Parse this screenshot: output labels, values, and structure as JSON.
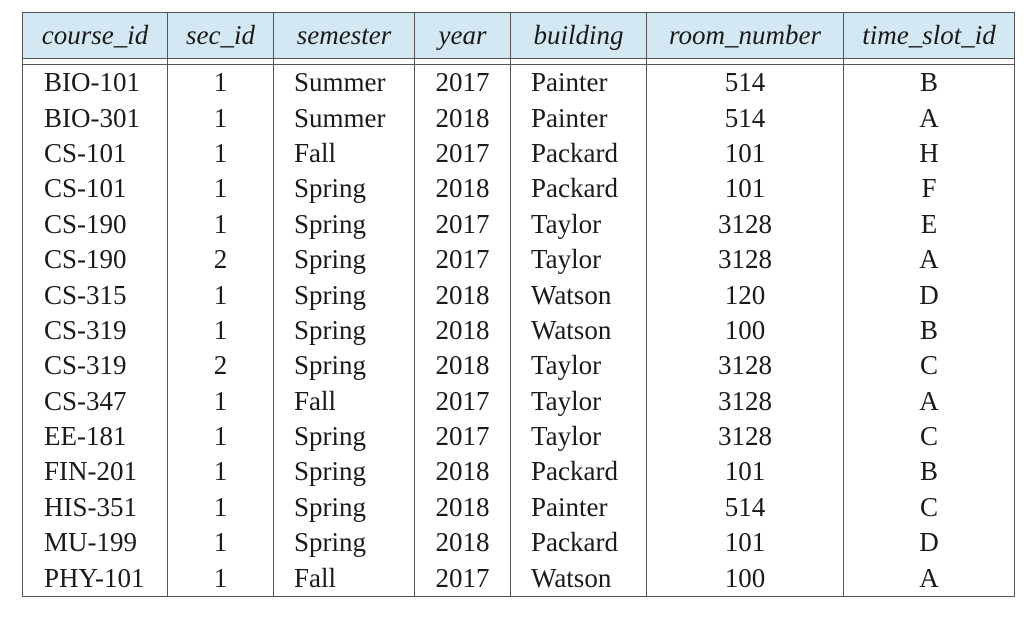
{
  "table": {
    "headers": [
      "course_id",
      "sec_id",
      "semester",
      "year",
      "building",
      "room_number",
      "time_slot_id"
    ],
    "rows": [
      [
        "BIO-101",
        "1",
        "Summer",
        "2017",
        "Painter",
        "514",
        "B"
      ],
      [
        "BIO-301",
        "1",
        "Summer",
        "2018",
        "Painter",
        "514",
        "A"
      ],
      [
        "CS-101",
        "1",
        "Fall",
        "2017",
        "Packard",
        "101",
        "H"
      ],
      [
        "CS-101",
        "1",
        "Spring",
        "2018",
        "Packard",
        "101",
        "F"
      ],
      [
        "CS-190",
        "1",
        "Spring",
        "2017",
        "Taylor",
        "3128",
        "E"
      ],
      [
        "CS-190",
        "2",
        "Spring",
        "2017",
        "Taylor",
        "3128",
        "A"
      ],
      [
        "CS-315",
        "1",
        "Spring",
        "2018",
        "Watson",
        "120",
        "D"
      ],
      [
        "CS-319",
        "1",
        "Spring",
        "2018",
        "Watson",
        "100",
        "B"
      ],
      [
        "CS-319",
        "2",
        "Spring",
        "2018",
        "Taylor",
        "3128",
        "C"
      ],
      [
        "CS-347",
        "1",
        "Fall",
        "2017",
        "Taylor",
        "3128",
        "A"
      ],
      [
        "EE-181",
        "1",
        "Spring",
        "2017",
        "Taylor",
        "3128",
        "C"
      ],
      [
        "FIN-201",
        "1",
        "Spring",
        "2018",
        "Packard",
        "101",
        "B"
      ],
      [
        "HIS-351",
        "1",
        "Spring",
        "2018",
        "Painter",
        "514",
        "C"
      ],
      [
        "MU-199",
        "1",
        "Spring",
        "2018",
        "Packard",
        "101",
        "D"
      ],
      [
        "PHY-101",
        "1",
        "Fall",
        "2017",
        "Watson",
        "100",
        "A"
      ]
    ]
  },
  "colors": {
    "header_background": "#d3e8f3",
    "border": "#555555",
    "text": "#1a1a1a"
  }
}
